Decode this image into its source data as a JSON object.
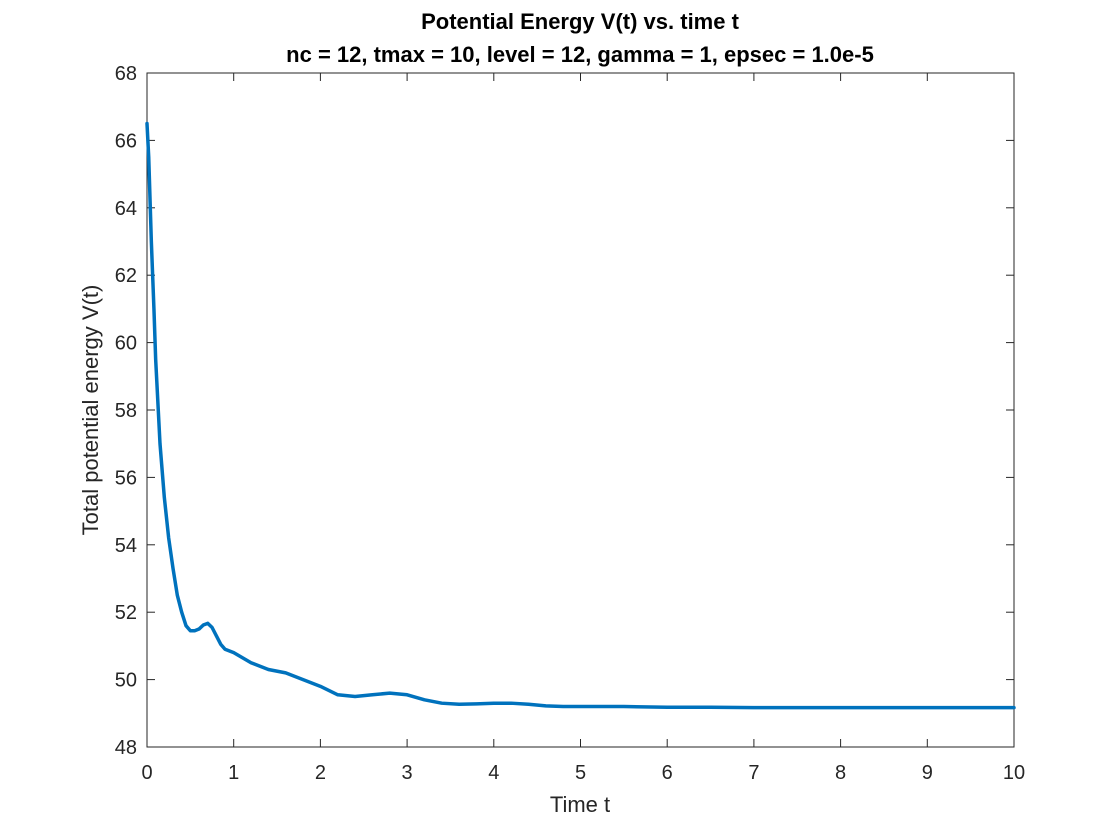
{
  "chart_data": {
    "type": "line",
    "title": "Potential Energy V(t) vs. time t",
    "subtitle": "nc = 12, tmax = 10, level = 12, gamma = 1, epsec = 1.0e-5",
    "xlabel": "Time t",
    "ylabel": "Total potential energy V(t)",
    "xlim": [
      0,
      10
    ],
    "ylim": [
      48,
      68
    ],
    "xticks": [
      "0",
      "1",
      "2",
      "3",
      "4",
      "5",
      "6",
      "7",
      "8",
      "9",
      "10"
    ],
    "yticks": [
      "48",
      "50",
      "52",
      "54",
      "56",
      "58",
      "60",
      "62",
      "64",
      "66",
      "68"
    ],
    "grid": false,
    "line_color": "#0072BD",
    "series": [
      {
        "x": [
          0,
          0.02,
          0.05,
          0.08,
          0.1,
          0.15,
          0.2,
          0.25,
          0.3,
          0.35,
          0.4,
          0.45,
          0.5,
          0.55,
          0.6,
          0.65,
          0.7,
          0.75,
          0.8,
          0.85,
          0.9,
          1.0,
          1.2,
          1.4,
          1.6,
          1.8,
          2.0,
          2.2,
          2.4,
          2.6,
          2.8,
          3.0,
          3.2,
          3.4,
          3.6,
          3.8,
          4.0,
          4.2,
          4.4,
          4.6,
          4.8,
          5.0,
          5.5,
          6.0,
          6.5,
          7.0,
          8.0,
          9.0,
          10.0
        ],
        "values": [
          66.5,
          65.5,
          63.0,
          61.0,
          59.5,
          57.0,
          55.4,
          54.2,
          53.3,
          52.5,
          52.0,
          51.6,
          51.45,
          51.45,
          51.5,
          51.62,
          51.67,
          51.55,
          51.3,
          51.05,
          50.9,
          50.8,
          50.5,
          50.3,
          50.2,
          50.0,
          49.8,
          49.55,
          49.5,
          49.55,
          49.6,
          49.55,
          49.4,
          49.3,
          49.27,
          49.28,
          49.3,
          49.3,
          49.27,
          49.22,
          49.2,
          49.2,
          49.2,
          49.18,
          49.18,
          49.17,
          49.17,
          49.17,
          49.17
        ]
      }
    ]
  }
}
